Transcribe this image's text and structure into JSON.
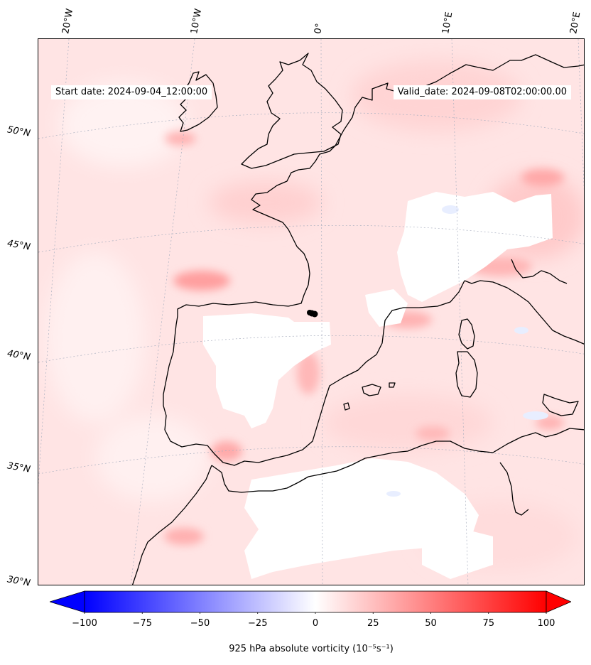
{
  "header": {
    "start_label": "Start date: 2024-09-04_12:00:00",
    "valid_label": "Valid_date: 2024-09-08T02:00:00.00"
  },
  "axes": {
    "lon_labels": [
      "20°W",
      "10°W",
      "0°",
      "10°E",
      "20°E"
    ],
    "lat_labels": [
      "50°N",
      "45°N",
      "40°N",
      "35°N",
      "30°N"
    ]
  },
  "colorbar": {
    "min": -100,
    "max": 100,
    "ticks": [
      "−100",
      "−75",
      "−50",
      "−25",
      "0",
      "25",
      "50",
      "75",
      "100"
    ],
    "label": "925 hPa absolute vorticity (10⁻⁵s⁻¹)",
    "neg_color": "#0000ff",
    "zero_color": "#ffffff",
    "pos_color": "#ff0000"
  },
  "colors": {
    "field_base": "#ffe3e3",
    "coastline": "#000000",
    "gridline": "#9aa0b0"
  }
}
